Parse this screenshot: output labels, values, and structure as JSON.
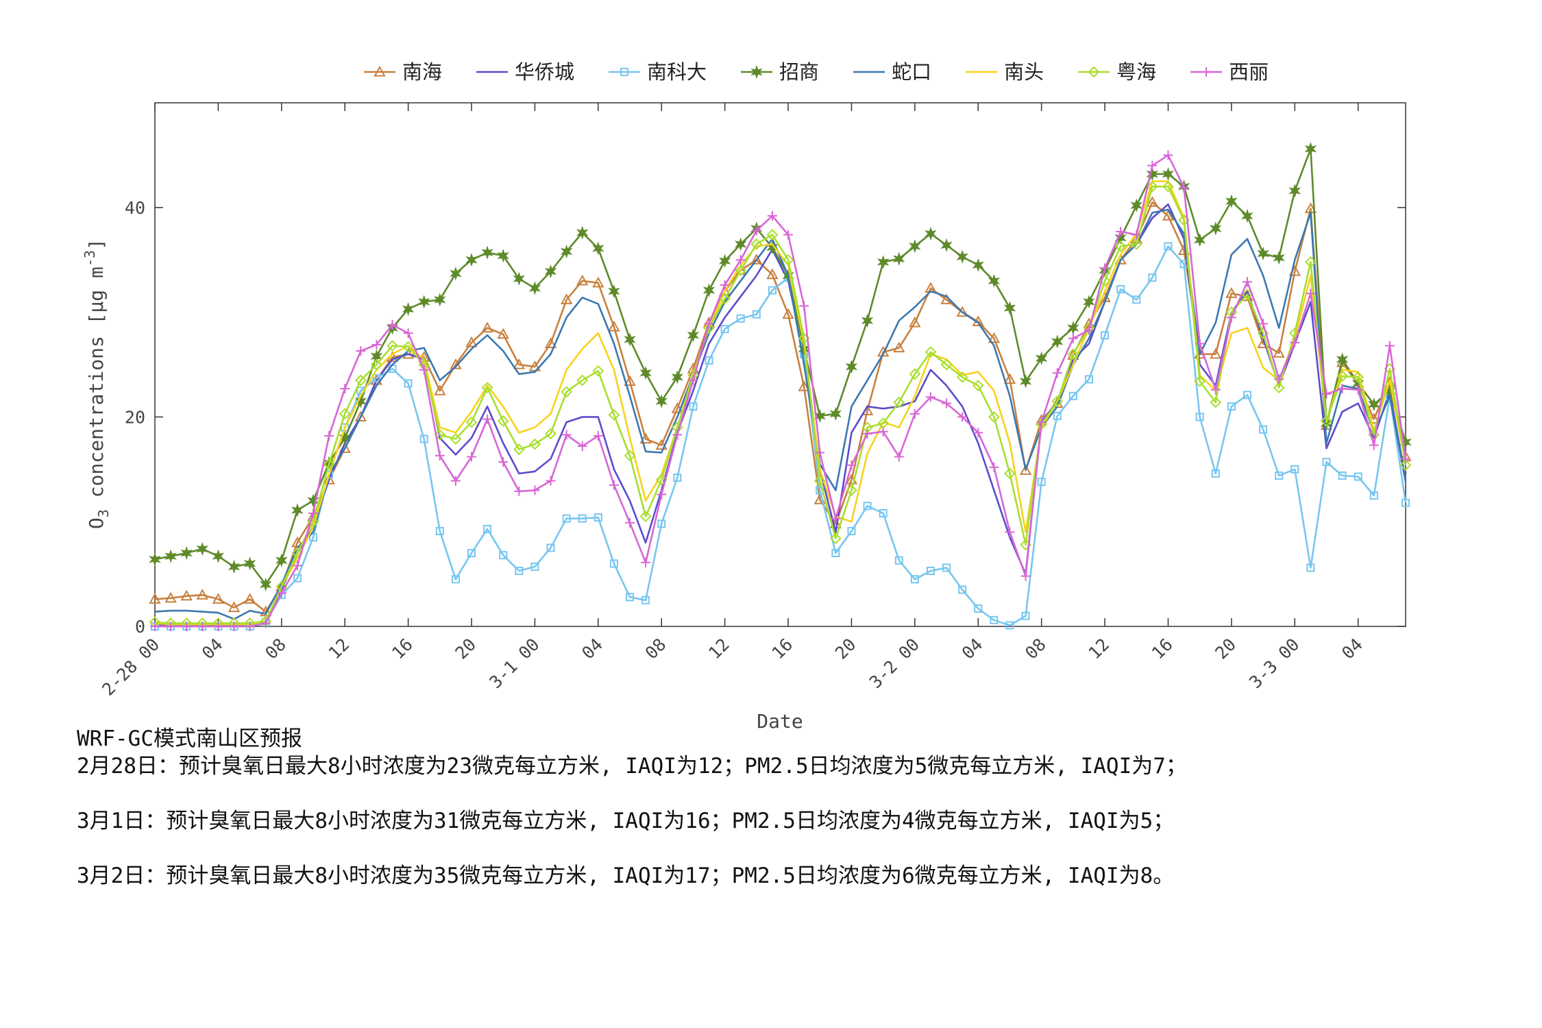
{
  "chart_data": {
    "type": "line",
    "xlabel": "Date",
    "ylabel": [
      "O",
      "3",
      " concentrations [μg m",
      "-3",
      "]"
    ],
    "x": [
      0,
      1,
      2,
      3,
      4,
      5,
      6,
      7,
      8,
      9,
      10,
      11,
      12,
      13,
      14,
      15,
      16,
      17,
      18,
      19,
      20,
      21,
      22,
      23,
      24,
      25,
      26,
      27,
      28,
      29,
      30,
      31,
      32,
      33,
      34,
      35,
      36,
      37,
      38,
      39,
      40,
      41,
      42,
      43,
      44,
      45,
      46,
      47,
      48,
      49,
      50,
      51,
      52,
      53,
      54,
      55,
      56,
      57,
      58,
      59,
      60,
      61,
      62,
      63,
      64,
      65,
      66,
      67,
      68,
      69,
      70,
      71,
      72,
      73,
      74,
      75,
      76,
      77,
      78,
      79
    ],
    "xlim": [
      0,
      79
    ],
    "xticks": [
      {
        "value": 0,
        "label": "2-28 00"
      },
      {
        "value": 4,
        "label": "04"
      },
      {
        "value": 8,
        "label": "08"
      },
      {
        "value": 12,
        "label": "12"
      },
      {
        "value": 16,
        "label": "16"
      },
      {
        "value": 20,
        "label": "20"
      },
      {
        "value": 24,
        "label": "3-1 00"
      },
      {
        "value": 28,
        "label": "04"
      },
      {
        "value": 32,
        "label": "08"
      },
      {
        "value": 36,
        "label": "12"
      },
      {
        "value": 40,
        "label": "16"
      },
      {
        "value": 44,
        "label": "20"
      },
      {
        "value": 48,
        "label": "3-2 00"
      },
      {
        "value": 52,
        "label": "04"
      },
      {
        "value": 56,
        "label": "08"
      },
      {
        "value": 60,
        "label": "12"
      },
      {
        "value": 64,
        "label": "16"
      },
      {
        "value": 68,
        "label": "20"
      },
      {
        "value": 72,
        "label": "3-3 00"
      },
      {
        "value": 76,
        "label": "04"
      }
    ],
    "ylim": [
      0,
      50
    ],
    "yticks": [
      0,
      20,
      40
    ],
    "legend": "top",
    "series": [
      {
        "name": "南海",
        "color": "#c8803e",
        "marker": "triangle",
        "values": [
          2.6,
          2.7,
          2.9,
          3.0,
          2.6,
          1.8,
          2.6,
          1.4,
          3.8,
          8.0,
          10.5,
          14.0,
          17.0,
          20.0,
          23.5,
          25.7,
          26.0,
          25.7,
          22.5,
          25.0,
          27.1,
          28.5,
          27.9,
          25.0,
          24.8,
          27.0,
          31.2,
          33.0,
          32.8,
          28.6,
          23.4,
          17.9,
          17.3,
          20.8,
          24.6,
          29.0,
          32.0,
          34.0,
          35.0,
          33.6,
          29.8,
          22.9,
          12.1,
          9.8,
          14.0,
          20.6,
          26.2,
          26.6,
          29.0,
          32.3,
          31.2,
          30.0,
          29.1,
          27.5,
          23.6,
          14.9,
          19.7,
          21.3,
          25.9,
          28.9,
          31.4,
          35.0,
          37.0,
          40.5,
          39.2,
          35.9,
          26.0,
          26.0,
          31.8,
          31.5,
          27.0,
          26.1,
          33.9,
          39.9,
          19.2,
          25.2,
          23.1,
          19.8,
          23.3,
          16.2
        ]
      },
      {
        "name": "华侨城",
        "color": "#5b4ccc",
        "marker": "none",
        "values": [
          0.1,
          0.1,
          0.1,
          0.1,
          0.1,
          0.1,
          0.2,
          0.3,
          3.5,
          7.0,
          9.5,
          14.0,
          17.5,
          20.0,
          23.5,
          25.5,
          26.0,
          25.5,
          18.0,
          16.4,
          18.0,
          21.0,
          17.5,
          14.6,
          14.8,
          16.0,
          19.5,
          20.0,
          20.0,
          15.0,
          12.0,
          8.0,
          13.0,
          18.5,
          22.5,
          27.0,
          29.5,
          31.5,
          33.5,
          36.0,
          33.0,
          26.0,
          15.0,
          9.0,
          18.5,
          21.0,
          20.8,
          21.0,
          21.5,
          24.5,
          23.0,
          21.0,
          17.5,
          13.0,
          8.5,
          5.0,
          19.5,
          21.5,
          25.5,
          27.0,
          31.0,
          35.0,
          36.5,
          39.0,
          40.3,
          37.0,
          25.0,
          23.0,
          30.0,
          32.0,
          27.5,
          23.0,
          27.0,
          31.0,
          17.0,
          20.5,
          21.3,
          18.0,
          22.5,
          14.0
        ]
      },
      {
        "name": "南科大",
        "color": "#77c6f0",
        "marker": "square",
        "values": [
          0,
          0,
          0,
          0,
          0,
          0,
          0,
          0.4,
          3.0,
          4.6,
          8.5,
          14.5,
          19.0,
          22.5,
          23.7,
          24.6,
          23.2,
          17.9,
          9.1,
          4.5,
          7.0,
          9.3,
          6.8,
          5.3,
          5.7,
          7.5,
          10.3,
          10.3,
          10.4,
          6.0,
          2.8,
          2.5,
          9.8,
          14.2,
          21.0,
          25.4,
          28.4,
          29.4,
          29.8,
          32.1,
          33.3,
          26.0,
          13.0,
          7.0,
          9.1,
          11.5,
          10.8,
          6.3,
          4.5,
          5.3,
          5.6,
          3.5,
          1.7,
          0.6,
          0.1,
          1.0,
          13.8,
          20.1,
          22.0,
          23.6,
          27.8,
          32.2,
          31.2,
          33.3,
          36.3,
          34.6,
          20.0,
          14.6,
          21.0,
          22.1,
          18.8,
          14.4,
          15.0,
          5.6,
          15.7,
          14.4,
          14.3,
          12.5,
          22.0,
          11.8
        ]
      },
      {
        "name": "招商",
        "color": "#5e8a2a",
        "marker": "star",
        "values": [
          6.4,
          6.7,
          7.0,
          7.4,
          6.7,
          5.7,
          6.0,
          4.0,
          6.3,
          11.1,
          12.0,
          15.6,
          18.0,
          21.5,
          25.8,
          28.5,
          30.3,
          31.0,
          31.2,
          33.7,
          35.0,
          35.7,
          35.4,
          33.2,
          32.3,
          33.9,
          35.8,
          37.6,
          36.1,
          32.0,
          27.4,
          24.2,
          21.5,
          23.8,
          27.8,
          32.1,
          34.9,
          36.5,
          38.0,
          36.2,
          33.5,
          26.5,
          20.1,
          20.3,
          24.8,
          29.2,
          34.8,
          35.1,
          36.3,
          37.5,
          36.4,
          35.3,
          34.5,
          33.0,
          30.4,
          23.4,
          25.6,
          27.2,
          28.5,
          31.0,
          34.0,
          37.1,
          40.2,
          43.2,
          43.2,
          42.0,
          36.9,
          38.0,
          40.6,
          39.2,
          35.6,
          35.2,
          41.6,
          45.6,
          19.4,
          25.5,
          23.2,
          21.2,
          22.5,
          17.6
        ]
      },
      {
        "name": "蛇口",
        "color": "#3b78b0",
        "marker": "none",
        "values": [
          1.4,
          1.5,
          1.5,
          1.4,
          1.3,
          0.7,
          1.5,
          1.2,
          4.0,
          7.5,
          9.0,
          14.5,
          17.0,
          20.0,
          23.0,
          25.0,
          26.3,
          26.6,
          23.5,
          24.8,
          26.5,
          27.8,
          26.3,
          24.1,
          24.3,
          26.0,
          29.5,
          31.4,
          30.8,
          27.0,
          22.0,
          16.7,
          16.6,
          20.0,
          24.0,
          28.0,
          31.0,
          33.0,
          35.0,
          37.0,
          33.5,
          25.0,
          15.5,
          13.0,
          21.0,
          23.5,
          26.0,
          29.2,
          30.5,
          32.0,
          31.5,
          30.0,
          29.0,
          26.8,
          22.0,
          15.0,
          19.0,
          21.0,
          25.0,
          27.5,
          31.0,
          35.0,
          36.5,
          39.5,
          39.8,
          37.5,
          26.0,
          29.0,
          35.5,
          37.0,
          33.5,
          28.5,
          35.0,
          39.5,
          17.5,
          23.0,
          22.7,
          18.5,
          22.0,
          13.8
        ]
      },
      {
        "name": "南头",
        "color": "#f7d21c",
        "marker": "none",
        "values": [
          0.3,
          0.2,
          0.2,
          0.2,
          0.2,
          0.2,
          0.2,
          0.5,
          3.8,
          6.5,
          9.5,
          14.5,
          19.0,
          22.0,
          24.5,
          26.0,
          26.8,
          25.5,
          19.0,
          18.5,
          20.5,
          23.0,
          21.0,
          18.5,
          19.0,
          20.3,
          24.5,
          26.5,
          28.0,
          24.5,
          18.0,
          12.0,
          14.5,
          19.0,
          24.0,
          28.5,
          32.0,
          34.5,
          36.3,
          36.5,
          34.5,
          27.0,
          15.0,
          10.5,
          10.0,
          16.5,
          19.5,
          19.0,
          22.0,
          26.0,
          25.5,
          24.0,
          24.3,
          22.5,
          17.5,
          9.0,
          19.0,
          21.5,
          25.0,
          28.5,
          32.0,
          35.5,
          37.5,
          42.5,
          42.5,
          39.0,
          24.0,
          22.5,
          28.0,
          28.5,
          24.7,
          23.5,
          27.5,
          33.5,
          19.5,
          24.5,
          24.3,
          18.7,
          23.5,
          15.5
        ]
      },
      {
        "name": "粤海",
        "color": "#a8de2e",
        "marker": "diamond",
        "values": [
          0.4,
          0.3,
          0.3,
          0.3,
          0.3,
          0.3,
          0.3,
          0.5,
          3.8,
          7.0,
          10.0,
          15.5,
          20.3,
          23.5,
          25.0,
          26.8,
          26.7,
          25.0,
          18.3,
          17.9,
          19.5,
          22.8,
          19.6,
          16.9,
          17.4,
          18.4,
          22.4,
          23.5,
          24.4,
          20.2,
          16.3,
          10.5,
          14.0,
          19.0,
          24.0,
          28.5,
          31.3,
          34.0,
          36.5,
          37.4,
          35.0,
          27.5,
          13.9,
          8.4,
          13.0,
          19.0,
          19.4,
          21.4,
          24.1,
          26.2,
          25.0,
          23.8,
          23.0,
          20.0,
          14.6,
          7.8,
          19.3,
          21.5,
          26.0,
          28.5,
          33.0,
          36.3,
          36.5,
          42.0,
          42.0,
          38.8,
          23.4,
          21.4,
          30.0,
          31.7,
          28.0,
          22.8,
          28.0,
          34.8,
          19.6,
          23.9,
          23.8,
          18.3,
          24.6,
          15.4
        ]
      },
      {
        "name": "西丽",
        "color": "#d866d6",
        "marker": "plus",
        "values": [
          0,
          0,
          0,
          0,
          0,
          0,
          0,
          0.3,
          3.2,
          5.8,
          10.8,
          18.2,
          22.7,
          26.3,
          26.9,
          28.8,
          28.0,
          24.5,
          16.3,
          13.9,
          16.2,
          19.8,
          15.7,
          12.9,
          13.0,
          13.9,
          18.3,
          17.2,
          18.2,
          13.5,
          9.9,
          6.1,
          12.6,
          18.3,
          23.5,
          28.9,
          32.6,
          35.0,
          37.8,
          39.2,
          37.4,
          30.6,
          16.6,
          10.3,
          15.4,
          18.4,
          18.6,
          16.2,
          20.3,
          21.9,
          21.3,
          20.0,
          18.5,
          15.2,
          9.0,
          4.8,
          19.5,
          24.2,
          27.5,
          28.3,
          34.2,
          37.7,
          37.4,
          44.0,
          45.0,
          41.9,
          27.0,
          22.6,
          29.5,
          32.9,
          28.9,
          23.6,
          27.1,
          31.8,
          22.2,
          22.7,
          22.6,
          17.3,
          26.8,
          16.0
        ]
      }
    ],
    "annotations": [
      "WRF-GC模式南山区预报",
      "2月28日：预计臭氧日最大8小时浓度为23微克每立方米, IAQI为12；PM2.5日均浓度为5微克每立方米, IAQI为7；",
      "3月1日：预计臭氧日最大8小时浓度为31微克每立方米, IAQI为16；PM2.5日均浓度为4微克每立方米, IAQI为5；",
      "3月2日：预计臭氧日最大8小时浓度为35微克每立方米, IAQI为17；PM2.5日均浓度为6微克每立方米, IAQI为8。"
    ]
  }
}
